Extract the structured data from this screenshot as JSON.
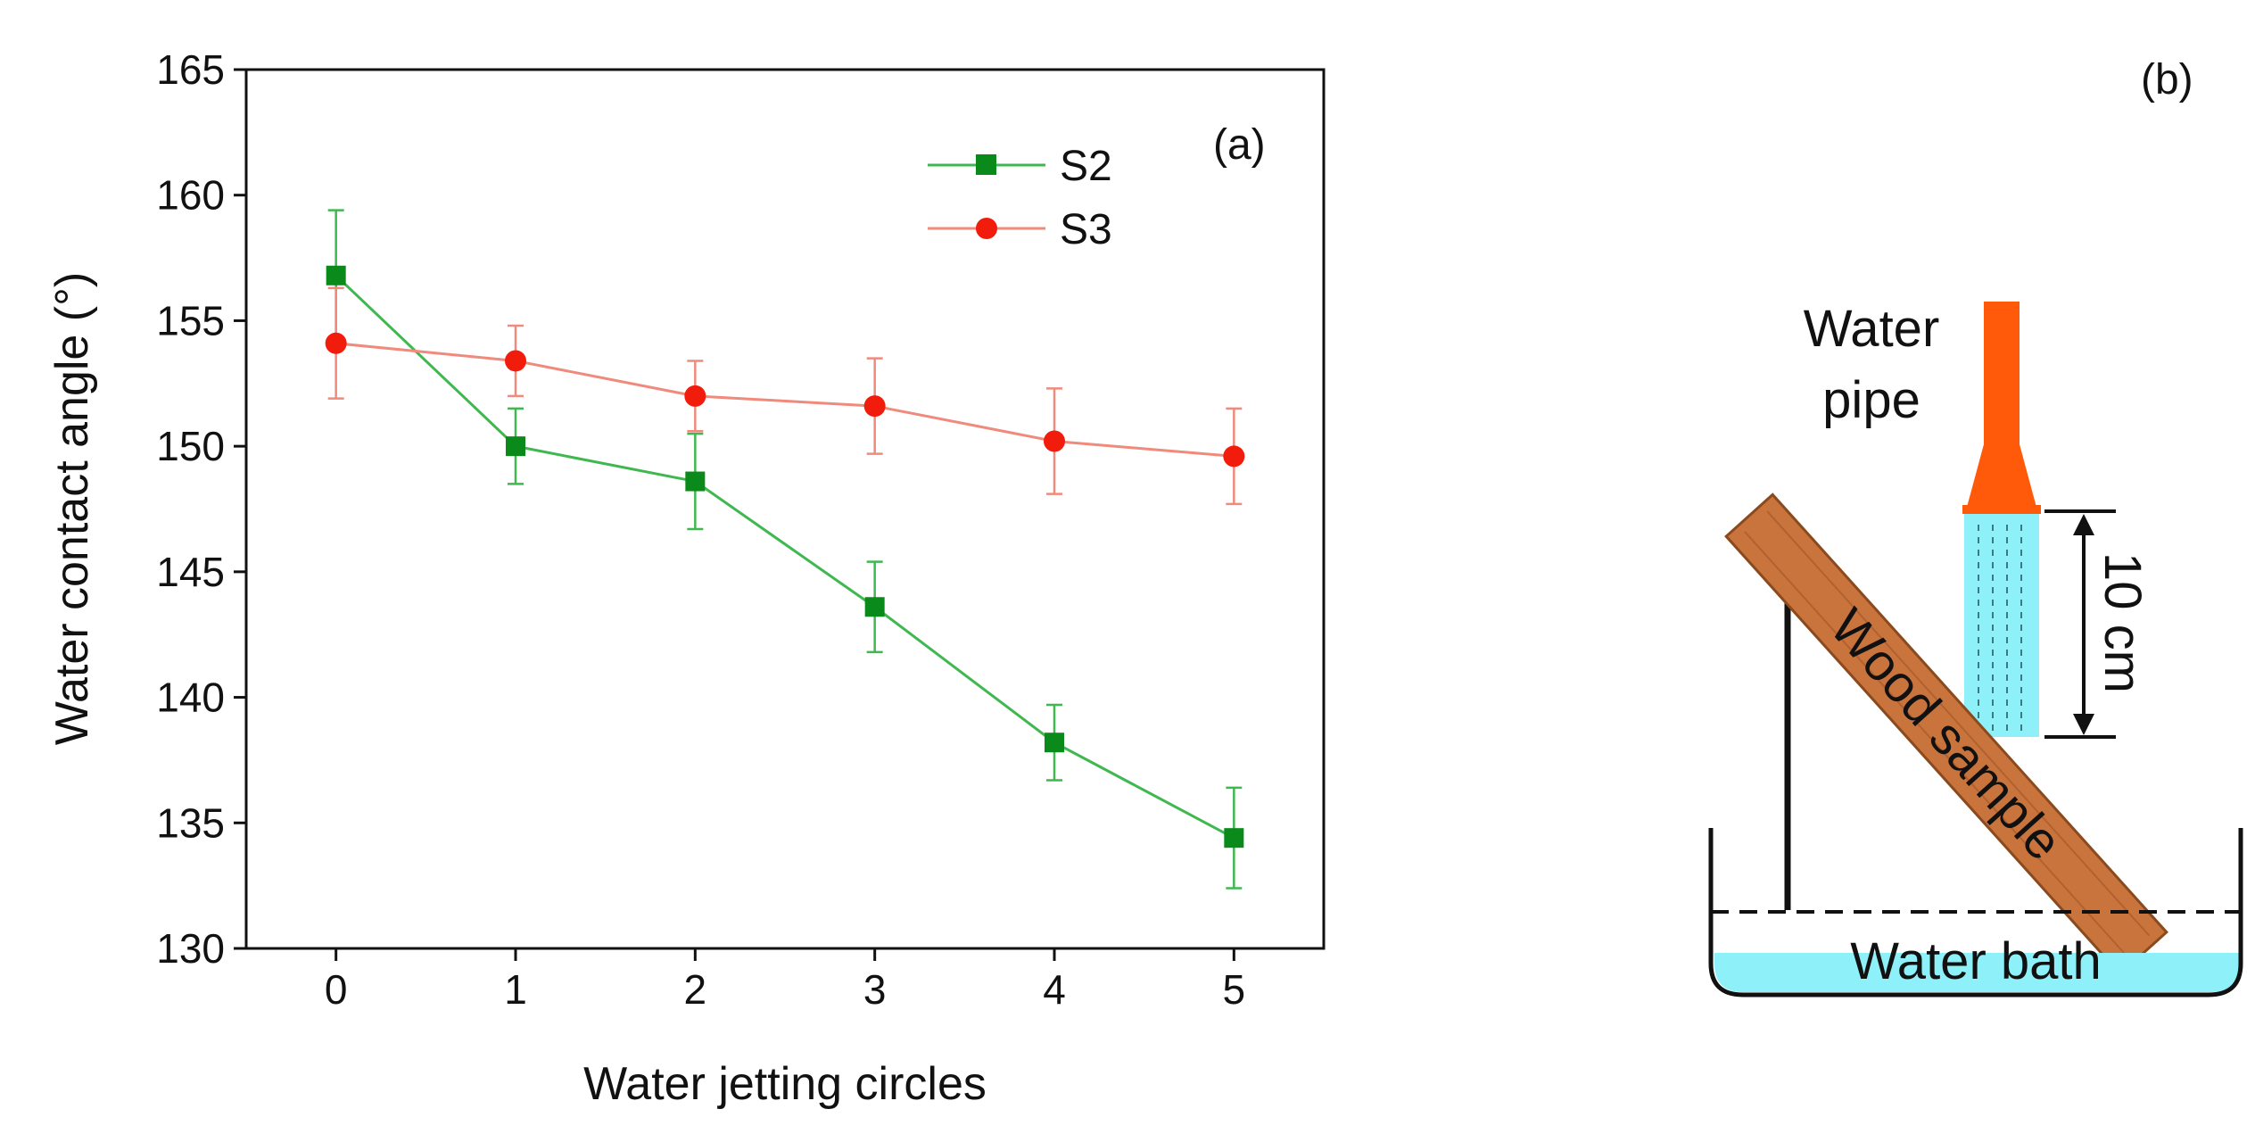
{
  "chart_data": {
    "type": "line",
    "panel_label": "(a)",
    "xlabel": "Water jetting circles",
    "ylabel": "Water contact angle (°)",
    "x": [
      0,
      1,
      2,
      3,
      4,
      5
    ],
    "x_tick_labels": [
      "0",
      "1",
      "2",
      "3",
      "4",
      "5"
    ],
    "xlim": [
      -0.5,
      5.5
    ],
    "ylim": [
      130,
      165
    ],
    "y_ticks": [
      130,
      135,
      140,
      145,
      150,
      155,
      160,
      165
    ],
    "y_tick_labels": [
      "130",
      "135",
      "140",
      "145",
      "150",
      "155",
      "160",
      "165"
    ],
    "grid": false,
    "legend_position": "top-right",
    "series": [
      {
        "name": "S2",
        "marker": "square",
        "color": "#0a8a1a",
        "line_color": "#3fb84f",
        "values": [
          156.8,
          150.0,
          148.6,
          143.6,
          138.2,
          134.4
        ],
        "errors": [
          2.6,
          1.5,
          1.9,
          1.8,
          1.5,
          2.0
        ]
      },
      {
        "name": "S3",
        "marker": "circle",
        "color": "#f21c0c",
        "line_color": "#f08a7c",
        "values": [
          154.1,
          153.4,
          152.0,
          151.6,
          150.2,
          149.6
        ],
        "errors": [
          2.2,
          1.4,
          1.4,
          1.9,
          2.1,
          1.9
        ]
      }
    ]
  },
  "diagram": {
    "panel_label": "(b)",
    "pipe_label_line1": "Water",
    "pipe_label_line2": "pipe",
    "sample_label": "Wood sample",
    "distance_label": "10 cm",
    "bath_label": "Water bath",
    "colors": {
      "pipe": "#ff5a0a",
      "water": "#8ef0f8",
      "wood": "#c8743c",
      "wood_edge": "#8a4a1e"
    }
  }
}
